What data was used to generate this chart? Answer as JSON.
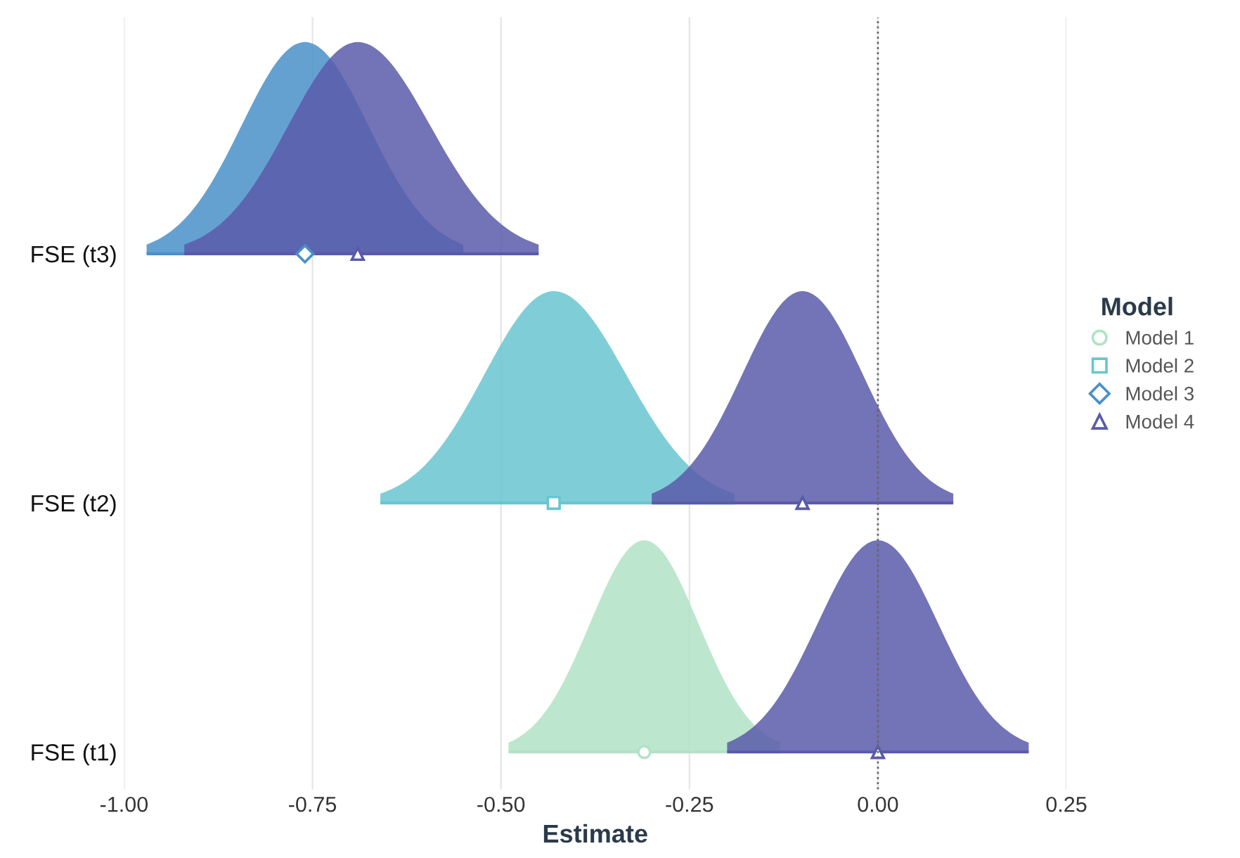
{
  "chart_data": {
    "type": "scatter",
    "orientation": "horizontal",
    "xlabel": "Estimate",
    "legend_title": "Model",
    "legend": "right",
    "grid": "x",
    "categories": [
      "FSE (t3)",
      "FSE (t2)",
      "FSE (t1)"
    ],
    "xlim": [
      -1.0,
      0.25
    ],
    "xticks": [
      {
        "value": -1.0,
        "label": "-1.00"
      },
      {
        "value": -0.75,
        "label": "-0.75"
      },
      {
        "value": -0.5,
        "label": "-0.50"
      },
      {
        "value": -0.25,
        "label": "-0.25"
      },
      {
        "value": 0.0,
        "label": "0.00"
      },
      {
        "value": 0.25,
        "label": "0.25"
      }
    ],
    "series": [
      {
        "name": "Model 1",
        "color": "#b2e2c6",
        "marker": "circle",
        "values": [
          null,
          null,
          -0.31
        ],
        "errors": [
          null,
          null,
          [
            -0.49,
            -0.13
          ]
        ]
      },
      {
        "name": "Model 2",
        "color": "#68c6d0",
        "marker": "square",
        "values": [
          null,
          -0.43,
          null
        ],
        "errors": [
          null,
          [
            -0.66,
            -0.19
          ],
          null
        ]
      },
      {
        "name": "Model 3",
        "color": "#4a90c8",
        "marker": "diamond",
        "values": [
          -0.76,
          null,
          null
        ],
        "errors": [
          [
            -0.97,
            -0.55
          ],
          null,
          null
        ]
      },
      {
        "name": "Model 4",
        "color": "#5a5aaa",
        "marker": "triangle",
        "values": [
          -0.69,
          -0.1,
          0.0
        ],
        "errors": [
          [
            -0.92,
            -0.45
          ],
          [
            -0.3,
            0.1
          ],
          [
            -0.2,
            0.2
          ]
        ]
      }
    ],
    "ref_lines": [
      {
        "axis": "x",
        "value": 0.0,
        "line_style": "dotted",
        "color": "#666666"
      }
    ]
  }
}
